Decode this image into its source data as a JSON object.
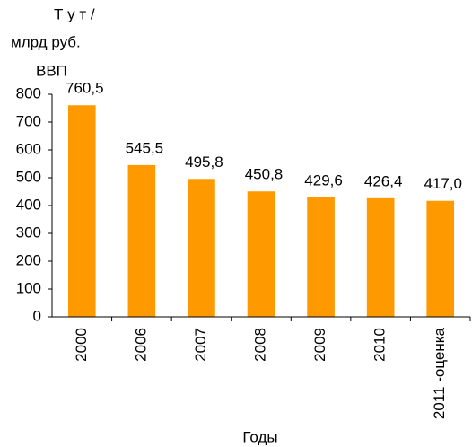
{
  "chart_data": {
    "type": "bar",
    "ylabel": [
      "Т у т /",
      "млрд руб.",
      "ВВП"
    ],
    "xlabel": "Годы",
    "categories": [
      "2000",
      "2006",
      "2007",
      "2008",
      "2009",
      "2010",
      "2011 -оценка"
    ],
    "values": [
      760.5,
      545.5,
      495.8,
      450.8,
      429.6,
      426.4,
      417
    ],
    "value_labels": [
      "760,5",
      "545,5",
      "495,8",
      "450,8",
      "429,6",
      "426,4",
      "417,0"
    ],
    "color": "#ff9900",
    "ylim": [
      0,
      800
    ],
    "yticks": [
      0,
      100,
      200,
      300,
      400,
      500,
      600,
      700,
      800
    ],
    "grid": false
  }
}
